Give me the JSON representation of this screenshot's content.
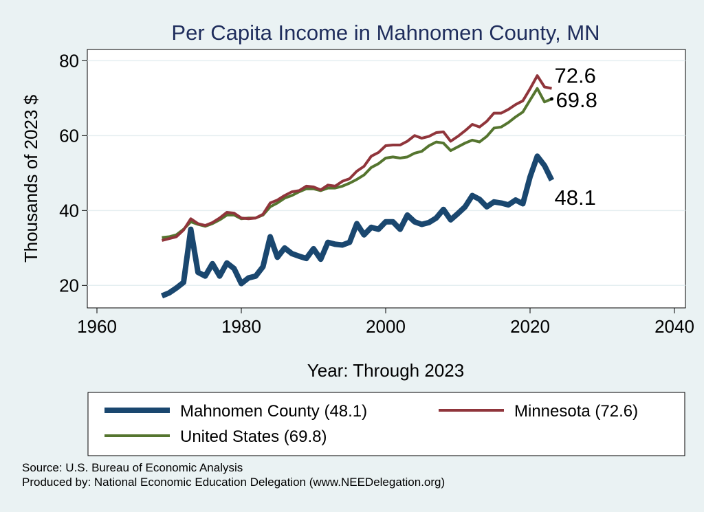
{
  "chart_data": {
    "type": "line",
    "title": "Per Capita Income in Mahnomen County, MN",
    "xlabel": "Year: Through 2023",
    "ylabel": "Thousands of 2023 $",
    "xlim": [
      1960,
      2040
    ],
    "ylim": [
      14,
      83
    ],
    "xticks": [
      1960,
      1980,
      2000,
      2020,
      2040
    ],
    "yticks": [
      20,
      40,
      60,
      80
    ],
    "grid": true,
    "legend_position": "bottom",
    "x": [
      1969,
      1970,
      1971,
      1972,
      1973,
      1974,
      1975,
      1976,
      1977,
      1978,
      1979,
      1980,
      1981,
      1982,
      1983,
      1984,
      1985,
      1986,
      1987,
      1988,
      1989,
      1990,
      1991,
      1992,
      1993,
      1994,
      1995,
      1996,
      1997,
      1998,
      1999,
      2000,
      2001,
      2002,
      2003,
      2004,
      2005,
      2006,
      2007,
      2008,
      2009,
      2010,
      2011,
      2012,
      2013,
      2014,
      2015,
      2016,
      2017,
      2018,
      2019,
      2020,
      2021,
      2022,
      2023
    ],
    "series": [
      {
        "name": "Mahnomen County",
        "legend": "Mahnomen County (48.1)",
        "end_label": "48.1",
        "color": "#1a476f",
        "values": [
          17.2,
          18.0,
          19.3,
          20.8,
          35.0,
          23.5,
          22.5,
          25.8,
          22.5,
          26.0,
          24.5,
          20.5,
          22.0,
          22.5,
          25.0,
          33.0,
          27.5,
          30.0,
          28.5,
          27.8,
          27.2,
          29.8,
          27.0,
          31.5,
          31.0,
          30.8,
          31.5,
          36.5,
          33.5,
          35.5,
          35.0,
          37.0,
          37.0,
          35.0,
          38.8,
          37.0,
          36.3,
          36.8,
          38.0,
          40.3,
          37.5,
          39.2,
          41.0,
          44.0,
          43.0,
          41.0,
          42.3,
          42.0,
          41.5,
          42.8,
          41.8,
          49.0,
          54.5,
          52.0,
          48.1
        ]
      },
      {
        "name": "Minnesota",
        "legend": "Minnesota (72.6)",
        "end_label": "72.6",
        "color": "#90353b",
        "values": [
          32.0,
          32.5,
          33.0,
          34.8,
          37.8,
          36.5,
          36.0,
          36.8,
          38.0,
          39.5,
          39.3,
          38.0,
          37.8,
          38.0,
          39.0,
          42.0,
          42.8,
          44.0,
          45.0,
          45.3,
          46.5,
          46.3,
          45.5,
          46.8,
          46.5,
          47.8,
          48.5,
          50.5,
          51.8,
          54.5,
          55.5,
          57.3,
          57.5,
          57.5,
          58.5,
          60.0,
          59.3,
          59.8,
          60.8,
          61.0,
          58.5,
          59.8,
          61.3,
          63.0,
          62.3,
          63.8,
          66.0,
          66.0,
          67.0,
          68.3,
          69.3,
          72.5,
          76.0,
          73.0,
          72.6
        ]
      },
      {
        "name": "United States",
        "legend": "United States (69.8)",
        "end_label": "69.8",
        "color": "#55752f",
        "values": [
          32.8,
          33.0,
          33.5,
          35.0,
          37.0,
          36.3,
          35.8,
          36.5,
          37.5,
          38.8,
          38.8,
          37.8,
          38.0,
          38.0,
          38.8,
          41.0,
          42.0,
          43.3,
          44.0,
          45.0,
          45.8,
          45.8,
          45.3,
          46.0,
          46.0,
          46.5,
          47.3,
          48.3,
          49.5,
          51.5,
          52.5,
          54.0,
          54.3,
          54.0,
          54.3,
          55.3,
          55.8,
          57.3,
          58.3,
          58.0,
          56.0,
          57.0,
          58.0,
          58.8,
          58.3,
          59.8,
          62.0,
          62.3,
          63.5,
          65.0,
          66.3,
          69.5,
          72.6,
          69.0,
          69.8
        ]
      }
    ]
  },
  "footer": {
    "source": "Source: U.S. Bureau of Economic Analysis",
    "produced_by": "Produced by: National Economic Education Delegation (www.NEEDelegation.org)"
  }
}
